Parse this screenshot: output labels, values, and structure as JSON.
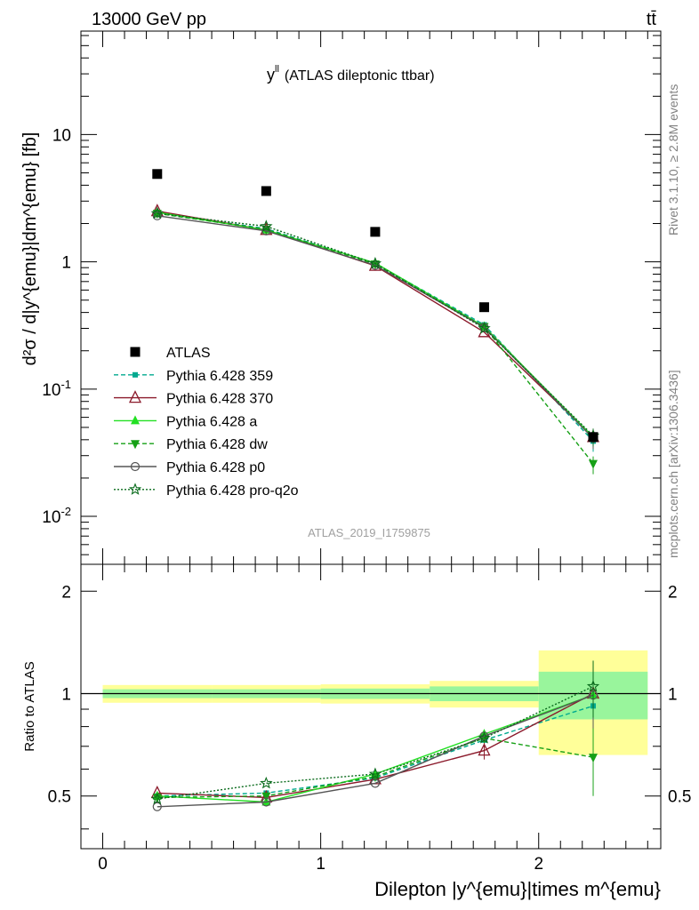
{
  "header": {
    "energy_label": "13000 GeV pp",
    "process_label": "tt̄"
  },
  "side_labels": {
    "rivet": "Rivet 3.1.10, ≥ 2.8M events",
    "source": "mcplots.cern.ch [arXiv:1306.3436]"
  },
  "chart_data": {
    "type": "scatter",
    "title": "y^{ll} (ATLAS dileptonic ttbar)",
    "title_main": "y",
    "title_sup": "ll",
    "title_rest": "(ATLAS dileptonic ttbar)",
    "watermark": "ATLAS_2019_I1759875",
    "xlabel": "Dilepton |y^{emu}|times m^{emu}",
    "ylabel": "d²σ / d|y^{emu}|dm^{emu} [fb]",
    "ratio_ylabel": "Ratio to ATLAS",
    "x_tick_labels": [
      "0",
      "1",
      "2"
    ],
    "main_y_tick_labels": [
      "10",
      "1",
      "10^-1",
      "10^-2"
    ],
    "ratio_y_tick_labels": [
      "2",
      "1",
      "0.5"
    ],
    "xlim": [
      -0.1,
      2.56
    ],
    "main_ylim": [
      0.0042,
      65
    ],
    "main_yscale": "log",
    "ratio_ylim": [
      0.35,
      2.4
    ],
    "ratio_yscale": "log",
    "legend_position": "lower-left",
    "x": [
      0.25,
      0.75,
      1.25,
      1.75,
      2.25
    ],
    "bin_edges": [
      0,
      0.5,
      1,
      1.5,
      2,
      2.5
    ],
    "data": {
      "name": "ATLAS",
      "values": [
        4.9,
        3.6,
        1.72,
        0.44,
        0.042
      ],
      "ratio_band_inner": [
        0.03,
        0.03,
        0.035,
        0.05,
        0.16
      ],
      "ratio_band_outer": [
        0.06,
        0.06,
        0.065,
        0.09,
        0.34
      ]
    },
    "series": [
      {
        "name": "Pythia 6.428 359",
        "color": "#00a98f",
        "marker": "square-small",
        "dash": "5,3",
        "values": [
          2.45,
          1.82,
          0.97,
          0.32,
          0.039
        ],
        "ratio": [
          0.5,
          0.51,
          0.565,
          0.73,
          0.92
        ],
        "ratio_err": [
          0,
          0,
          0,
          0,
          0.08
        ]
      },
      {
        "name": "Pythia 6.428 370",
        "color": "#8b1a2b",
        "marker": "triangle-open",
        "dash": "",
        "values": [
          2.5,
          1.78,
          0.93,
          0.28,
          0.042
        ],
        "ratio": [
          0.51,
          0.495,
          0.56,
          0.68,
          1.0
        ],
        "ratio_err": [
          0,
          0,
          0,
          0.04,
          0.2
        ]
      },
      {
        "name": "Pythia 6.428 a",
        "color": "#22e022",
        "marker": "triangle",
        "dash": "",
        "values": [
          2.45,
          1.78,
          0.98,
          0.31,
          0.042
        ],
        "ratio": [
          0.5,
          0.48,
          0.58,
          0.76,
          0.99
        ],
        "ratio_err": [
          0,
          0,
          0,
          0,
          0.2
        ]
      },
      {
        "name": "Pythia 6.428 dw",
        "color": "#16a016",
        "marker": "triangle-down",
        "dash": "5,3",
        "values": [
          2.4,
          1.8,
          0.96,
          0.31,
          0.026
        ],
        "ratio": [
          0.495,
          0.5,
          0.57,
          0.74,
          0.65
        ],
        "ratio_err": [
          0,
          0,
          0,
          0,
          0.15
        ]
      },
      {
        "name": "Pythia 6.428 p0",
        "color": "#555555",
        "marker": "circle-open",
        "dash": "",
        "values": [
          2.3,
          1.75,
          0.94,
          0.305,
          0.041
        ],
        "ratio": [
          0.465,
          0.48,
          0.545,
          0.75,
          0.99
        ],
        "ratio_err": [
          0,
          0,
          0,
          0,
          0.2
        ]
      },
      {
        "name": "Pythia 6.428 pro-q2o",
        "color": "#0a6b1c",
        "marker": "star-open",
        "dash": "2,2",
        "values": [
          2.4,
          1.9,
          0.97,
          0.3,
          0.043
        ],
        "ratio": [
          0.49,
          0.545,
          0.58,
          0.74,
          1.05
        ],
        "ratio_err": [
          0,
          0,
          0,
          0,
          0.2
        ]
      }
    ]
  }
}
